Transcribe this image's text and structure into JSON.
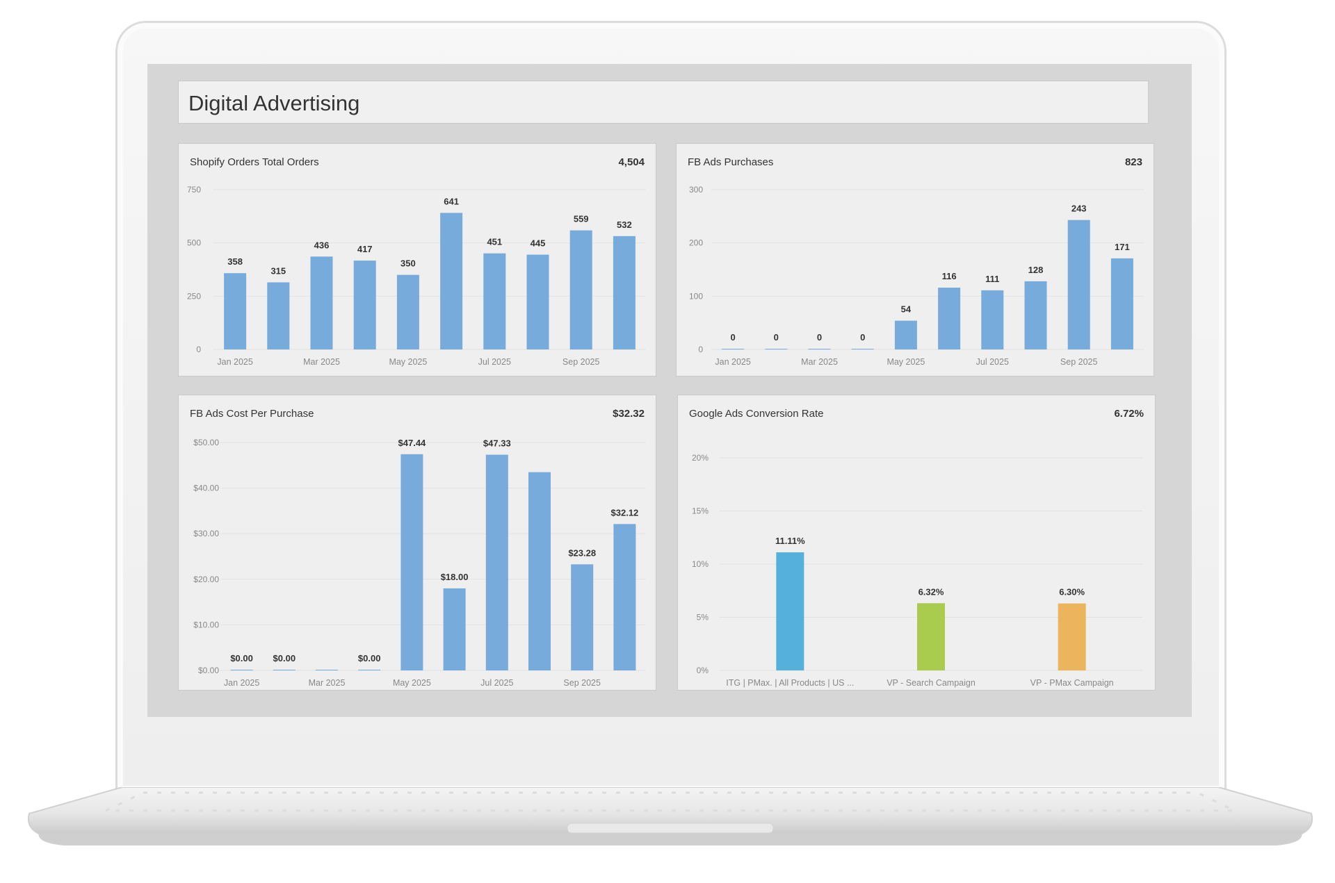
{
  "dashboard": {
    "title": "Digital Advertising"
  },
  "panels": [
    {
      "title": "Shopify Orders Total Orders",
      "total": "4,504",
      "chart_data": {
        "type": "bar",
        "color": "#77abdc",
        "ylim": [
          0,
          750
        ],
        "yticks": [
          0,
          250,
          500,
          750
        ],
        "ytick_labels": [
          "0",
          "250",
          "500",
          "750"
        ],
        "categories": [
          "Jan 2025",
          "Feb 2025",
          "Mar 2025",
          "Apr 2025",
          "May 2025",
          "Jun 2025",
          "Jul 2025",
          "Aug 2025",
          "Sep 2025",
          "Oct 2025"
        ],
        "xtick_labels": [
          "Jan 2025",
          "",
          "Mar 2025",
          "",
          "May 2025",
          "",
          "Jul 2025",
          "",
          "Sep 2025",
          ""
        ],
        "values": [
          358,
          315,
          436,
          417,
          350,
          641,
          451,
          445,
          559,
          532
        ],
        "data_labels": [
          "358",
          "315",
          "436",
          "417",
          "350",
          "641",
          "451",
          "445",
          "559",
          "532"
        ]
      }
    },
    {
      "title": "FB Ads Purchases",
      "total": "823",
      "chart_data": {
        "type": "bar",
        "color": "#77abdc",
        "ylim": [
          0,
          300
        ],
        "yticks": [
          0,
          100,
          200,
          300
        ],
        "ytick_labels": [
          "0",
          "100",
          "200",
          "300"
        ],
        "categories": [
          "Jan 2025",
          "Feb 2025",
          "Mar 2025",
          "Apr 2025",
          "May 2025",
          "Jun 2025",
          "Jul 2025",
          "Aug 2025",
          "Sep 2025",
          "Oct 2025"
        ],
        "xtick_labels": [
          "Jan 2025",
          "",
          "Mar 2025",
          "",
          "May 2025",
          "",
          "Jul 2025",
          "",
          "Sep 2025",
          ""
        ],
        "values": [
          0,
          0,
          0,
          0,
          54,
          116,
          111,
          128,
          243,
          171
        ],
        "data_labels": [
          "0",
          "0",
          "0",
          "0",
          "54",
          "116",
          "111",
          "128",
          "243",
          "171"
        ]
      }
    },
    {
      "title": "FB Ads Cost Per Purchase",
      "total": "$32.32",
      "chart_data": {
        "type": "bar",
        "color": "#77abdc",
        "ylim": [
          0,
          50
        ],
        "yticks": [
          0,
          10,
          20,
          30,
          40,
          50
        ],
        "ytick_labels": [
          "$0.00",
          "$10.00",
          "$20.00",
          "$30.00",
          "$40.00",
          "$50.00"
        ],
        "categories": [
          "Jan 2025",
          "Feb 2025",
          "Mar 2025",
          "Apr 2025",
          "May 2025",
          "Jun 2025",
          "Jul 2025",
          "Aug 2025",
          "Sep 2025",
          "Oct 2025"
        ],
        "xtick_labels": [
          "Jan 2025",
          "",
          "Mar 2025",
          "",
          "May 2025",
          "",
          "Jul 2025",
          "",
          "Sep 2025",
          ""
        ],
        "values": [
          0,
          0,
          0,
          0,
          47.44,
          18.0,
          47.33,
          43.5,
          23.28,
          32.12
        ],
        "data_labels": [
          "$0.00",
          "$0.00",
          "",
          "$0.00",
          "$47.44",
          "$18.00",
          "$47.33",
          "",
          "$23.28",
          "$32.12"
        ]
      }
    },
    {
      "title": "Google Ads Conversion Rate",
      "total": "6.72%",
      "chart_data": {
        "type": "bar",
        "ylim": [
          0,
          20
        ],
        "yticks": [
          0,
          5,
          10,
          15,
          20
        ],
        "ytick_labels": [
          "0%",
          "5%",
          "10%",
          "15%",
          "20%"
        ],
        "categories": [
          "ITG | PMax. | All Products | US ...",
          "VP - Search Campaign",
          "VP - PMax Campaign"
        ],
        "xtick_labels": [
          "ITG | PMax. | All Products | US ...",
          "VP - Search Campaign",
          "VP - PMax Campaign"
        ],
        "values": [
          11.11,
          6.32,
          6.3
        ],
        "data_labels": [
          "11.11%",
          "6.32%",
          "6.30%"
        ],
        "colors": [
          "#55b1dc",
          "#a9cc4f",
          "#ebb45d"
        ]
      }
    }
  ]
}
